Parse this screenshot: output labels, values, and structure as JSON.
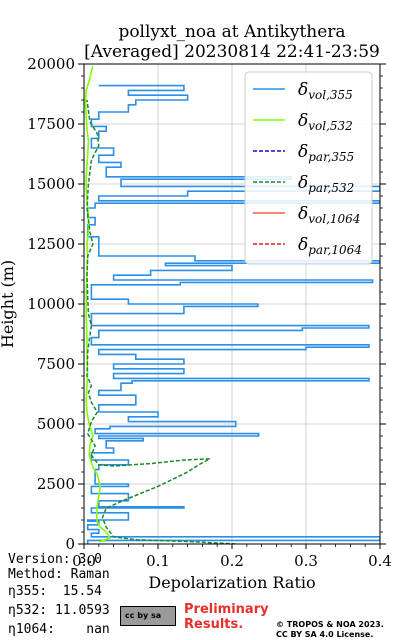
{
  "title": {
    "line1": "pollyxt_noa at Antikythera",
    "line2": "[Averaged] 20230814 22:41-23:59"
  },
  "info": {
    "version": "Version: 3.0",
    "method": "Method: Raman",
    "eta355": "η355:  15.54",
    "eta532": "η532: 11.0593",
    "eta1064": "η1064:    nan"
  },
  "footer": {
    "preliminary": "Preliminary Results.",
    "copyright": "© TROPOS & NOA 2023. CC BY SA 4.0 License.",
    "cc_badge": "cc by sa"
  },
  "chart_data": {
    "type": "line",
    "xlabel": "Depolarization Ratio",
    "ylabel": "Height (m)",
    "xlim": [
      0.0,
      0.4
    ],
    "ylim": [
      0,
      20000
    ],
    "xticks": [
      "0.0",
      "0.1",
      "0.2",
      "0.3",
      "0.4"
    ],
    "yticks": [
      "0",
      "2500",
      "5000",
      "7500",
      "10000",
      "12500",
      "15000",
      "17500",
      "20000"
    ],
    "grid": true,
    "legend_position": "top-right",
    "colors": {
      "vol355": "#2b8fe8",
      "vol532": "#7fff00",
      "par355": "#1010c0",
      "par532": "#1a8a2a",
      "vol1064": "#f4604a",
      "par1064": "#e02020"
    },
    "series": [
      {
        "name": "δvol,355",
        "style": "solid",
        "color": "#2b8fe8",
        "points": [
          [
            0.005,
            0
          ],
          [
            0.005,
            150
          ],
          [
            0.4,
            150
          ],
          [
            0.4,
            300
          ],
          [
            0.01,
            300
          ],
          [
            0.01,
            450
          ],
          [
            0.02,
            450
          ],
          [
            0.02,
            600
          ],
          [
            0.005,
            600
          ],
          [
            0.005,
            800
          ],
          [
            0.02,
            800
          ],
          [
            0.02,
            950
          ],
          [
            0.005,
            950
          ],
          [
            0.005,
            1000
          ],
          [
            0.06,
            1000
          ],
          [
            0.06,
            1300
          ],
          [
            0.01,
            1300
          ],
          [
            0.01,
            1500
          ],
          [
            0.135,
            1500
          ],
          [
            0.135,
            1550
          ],
          [
            0.02,
            1550
          ],
          [
            0.02,
            1800
          ],
          [
            0.06,
            1800
          ],
          [
            0.06,
            2100
          ],
          [
            0.01,
            2100
          ],
          [
            0.01,
            2400
          ],
          [
            0.06,
            2400
          ],
          [
            0.06,
            2500
          ],
          [
            0.015,
            2500
          ],
          [
            0.015,
            3100
          ],
          [
            0.02,
            3100
          ],
          [
            0.02,
            3300
          ],
          [
            0.06,
            3300
          ],
          [
            0.06,
            3500
          ],
          [
            0.01,
            3500
          ],
          [
            0.01,
            3800
          ],
          [
            0.04,
            3800
          ],
          [
            0.04,
            4000
          ],
          [
            0.03,
            4000
          ],
          [
            0.03,
            4300
          ],
          [
            0.08,
            4300
          ],
          [
            0.08,
            4400
          ],
          [
            0.02,
            4400
          ],
          [
            0.02,
            4500
          ],
          [
            0.236,
            4500
          ],
          [
            0.236,
            4600
          ],
          [
            0.015,
            4600
          ],
          [
            0.015,
            4800
          ],
          [
            0.035,
            4800
          ],
          [
            0.035,
            4900
          ],
          [
            0.205,
            4900
          ],
          [
            0.205,
            5100
          ],
          [
            0.06,
            5100
          ],
          [
            0.06,
            5300
          ],
          [
            0.1,
            5300
          ],
          [
            0.1,
            5500
          ],
          [
            0.02,
            5500
          ],
          [
            0.02,
            5800
          ],
          [
            0.07,
            5800
          ],
          [
            0.07,
            6200
          ],
          [
            0.02,
            6200
          ],
          [
            0.02,
            6400
          ],
          [
            0.05,
            6400
          ],
          [
            0.05,
            6700
          ],
          [
            0.065,
            6700
          ],
          [
            0.065,
            6800
          ],
          [
            0.385,
            6800
          ],
          [
            0.385,
            6900
          ],
          [
            0.04,
            6900
          ],
          [
            0.04,
            7100
          ],
          [
            0.135,
            7100
          ],
          [
            0.135,
            7300
          ],
          [
            0.04,
            7300
          ],
          [
            0.04,
            7500
          ],
          [
            0.135,
            7500
          ],
          [
            0.135,
            7700
          ],
          [
            0.07,
            7700
          ],
          [
            0.07,
            7900
          ],
          [
            0.02,
            7900
          ],
          [
            0.02,
            8100
          ],
          [
            0.3,
            8100
          ],
          [
            0.3,
            8200
          ],
          [
            0.385,
            8200
          ],
          [
            0.385,
            8300
          ],
          [
            0.01,
            8300
          ],
          [
            0.01,
            8600
          ],
          [
            0.02,
            8600
          ],
          [
            0.02,
            8900
          ],
          [
            0.295,
            8900
          ],
          [
            0.295,
            9000
          ],
          [
            0.385,
            9000
          ],
          [
            0.385,
            9100
          ],
          [
            0.01,
            9100
          ],
          [
            0.01,
            9600
          ],
          [
            0.135,
            9600
          ],
          [
            0.135,
            9900
          ],
          [
            0.235,
            9900
          ],
          [
            0.235,
            10000
          ],
          [
            0.06,
            10000
          ],
          [
            0.06,
            10200
          ],
          [
            0.01,
            10200
          ],
          [
            0.01,
            10800
          ],
          [
            0.13,
            10800
          ],
          [
            0.13,
            10900
          ],
          [
            0.39,
            10900
          ],
          [
            0.39,
            11000
          ],
          [
            0.04,
            11000
          ],
          [
            0.04,
            11200
          ],
          [
            0.09,
            11200
          ],
          [
            0.09,
            11400
          ],
          [
            0.2,
            11400
          ],
          [
            0.2,
            11600
          ],
          [
            0.11,
            11600
          ],
          [
            0.11,
            11700
          ],
          [
            0.4,
            11700
          ],
          [
            0.4,
            11800
          ],
          [
            0.15,
            11800
          ],
          [
            0.15,
            12000
          ],
          [
            0.02,
            12000
          ],
          [
            0.02,
            12800
          ],
          [
            0.005,
            12800
          ],
          [
            0.005,
            13300
          ],
          [
            0.015,
            13300
          ],
          [
            0.015,
            13600
          ],
          [
            0.005,
            13600
          ],
          [
            0.005,
            14000
          ],
          [
            0.015,
            14000
          ],
          [
            0.015,
            14200
          ],
          [
            0.4,
            14200
          ],
          [
            0.4,
            14300
          ],
          [
            0.02,
            14300
          ],
          [
            0.02,
            14500
          ],
          [
            0.14,
            14500
          ],
          [
            0.14,
            14700
          ],
          [
            0.4,
            14700
          ],
          [
            0.4,
            14900
          ],
          [
            0.05,
            14900
          ],
          [
            0.05,
            15200
          ],
          [
            0.28,
            15200
          ],
          [
            0.28,
            15300
          ],
          [
            0.03,
            15300
          ],
          [
            0.03,
            15700
          ],
          [
            0.05,
            15700
          ],
          [
            0.05,
            15900
          ],
          [
            0.02,
            15900
          ],
          [
            0.02,
            16200
          ],
          [
            0.04,
            16200
          ],
          [
            0.04,
            16500
          ],
          [
            0.01,
            16500
          ],
          [
            0.01,
            16900
          ],
          [
            0.02,
            16900
          ],
          [
            0.02,
            17200
          ],
          [
            0.03,
            17200
          ],
          [
            0.03,
            17400
          ],
          [
            0.01,
            17400
          ],
          [
            0.01,
            17700
          ],
          [
            0.02,
            17700
          ],
          [
            0.02,
            18000
          ],
          [
            0.06,
            18000
          ],
          [
            0.06,
            18300
          ],
          [
            0.07,
            18300
          ],
          [
            0.07,
            18500
          ],
          [
            0.14,
            18500
          ],
          [
            0.14,
            18700
          ],
          [
            0.06,
            18700
          ],
          [
            0.06,
            18900
          ],
          [
            0.135,
            18900
          ],
          [
            0.135,
            19100
          ],
          [
            0.02,
            19100
          ]
        ]
      },
      {
        "name": "δvol,532",
        "style": "solid",
        "color": "#7fff00",
        "points": [
          [
            0.02,
            80
          ],
          [
            0.035,
            250
          ],
          [
            0.03,
            500
          ],
          [
            0.022,
            700
          ],
          [
            0.018,
            900
          ],
          [
            0.017,
            1200
          ],
          [
            0.018,
            1600
          ],
          [
            0.02,
            2000
          ],
          [
            0.022,
            2400
          ],
          [
            0.018,
            2900
          ],
          [
            0.012,
            3200
          ],
          [
            0.007,
            3700
          ],
          [
            0.008,
            4100
          ],
          [
            0.012,
            4500
          ],
          [
            0.007,
            5000
          ],
          [
            0.004,
            5500
          ],
          [
            0.003,
            6000
          ],
          [
            0.004,
            6600
          ],
          [
            0.005,
            7200
          ],
          [
            0.004,
            7800
          ],
          [
            0.004,
            8600
          ],
          [
            0.003,
            9500
          ],
          [
            0.003,
            10500
          ],
          [
            0.004,
            11400
          ],
          [
            0.005,
            12000
          ],
          [
            0.004,
            12500
          ],
          [
            0.006,
            13000
          ],
          [
            0.006,
            13800
          ],
          [
            0.004,
            14300
          ],
          [
            0.003,
            14800
          ],
          [
            0.003,
            15300
          ],
          [
            0.004,
            15800
          ],
          [
            0.005,
            16200
          ],
          [
            0.006,
            16800
          ],
          [
            0.004,
            17300
          ],
          [
            0.003,
            17800
          ],
          [
            0.002,
            18400
          ],
          [
            0.003,
            18900
          ],
          [
            0.008,
            19400
          ],
          [
            0.01,
            19700
          ],
          [
            0.012,
            19900
          ]
        ]
      },
      {
        "name": "δpar,355",
        "style": "dashed",
        "color": "#1010c0",
        "points": []
      },
      {
        "name": "δpar,532",
        "style": "dashed",
        "color": "#1a8a2a",
        "points": [
          [
            0.205,
            0
          ],
          [
            0.15,
            90
          ],
          [
            0.07,
            180
          ],
          [
            0.04,
            300
          ],
          [
            0.03,
            700
          ],
          [
            0.025,
            1100
          ],
          [
            0.03,
            1500
          ],
          [
            0.06,
            1900
          ],
          [
            0.1,
            2400
          ],
          [
            0.12,
            2700
          ],
          [
            0.14,
            3000
          ],
          [
            0.155,
            3300
          ],
          [
            0.17,
            3550
          ],
          [
            0.135,
            3500
          ],
          [
            0.09,
            3350
          ],
          [
            0.04,
            3250
          ],
          [
            0.02,
            3300
          ],
          [
            0.01,
            3700
          ],
          [
            0.015,
            4100
          ],
          [
            0.005,
            4600
          ],
          [
            0.01,
            5100
          ],
          [
            0.018,
            5500
          ],
          [
            0.01,
            5900
          ],
          [
            0.006,
            6300
          ],
          [
            0.01,
            6600
          ],
          [
            0.004,
            7000
          ],
          [
            0.005,
            8000
          ],
          [
            0.008,
            8700
          ],
          [
            0.01,
            9100
          ],
          [
            0.006,
            9600
          ],
          [
            0.005,
            10300
          ],
          [
            0.004,
            11200
          ],
          [
            0.005,
            12000
          ],
          [
            0.012,
            12500
          ],
          [
            0.008,
            13000
          ],
          [
            0.004,
            14000
          ],
          [
            0.006,
            15000
          ],
          [
            0.01,
            16000
          ],
          [
            0.02,
            16600
          ],
          [
            0.018,
            17100
          ],
          [
            0.008,
            17600
          ],
          [
            0.004,
            18500
          ]
        ]
      },
      {
        "name": "δvol,1064",
        "style": "solid",
        "color": "#f4604a",
        "points": []
      },
      {
        "name": "δpar,1064",
        "style": "dashed",
        "color": "#e02020",
        "points": []
      }
    ]
  }
}
